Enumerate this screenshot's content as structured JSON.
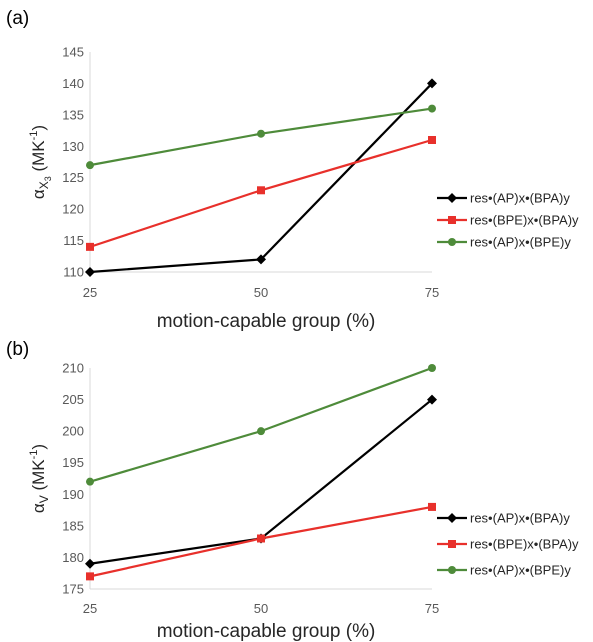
{
  "chart_data": [
    {
      "type": "line",
      "panel_label": "(a)",
      "categories": [
        "25",
        "50",
        "75"
      ],
      "x": [
        25,
        50,
        75
      ],
      "xlabel": "motion-capable group (%)",
      "ylabel_main": "α",
      "ylabel_sub": "X",
      "ylabel_subsub": "3",
      "ylabel_rest": " (MK",
      "ylabel_sup": "-1",
      "ylabel_close": ")",
      "ylim": [
        110,
        145
      ],
      "yticks": [
        "110",
        "115",
        "120",
        "125",
        "130",
        "135",
        "140",
        "145"
      ],
      "legend_position": "right",
      "series": [
        {
          "name": "res•(AP)x•(BPA)y",
          "color": "#000000",
          "marker": "diamond",
          "values": [
            110,
            112,
            140
          ]
        },
        {
          "name": "res•(BPE)x•(BPA)y",
          "color": "#e8302b",
          "marker": "square",
          "values": [
            114,
            123,
            131
          ]
        },
        {
          "name": "res•(AP)x•(BPE)y",
          "color": "#4e8b3a",
          "marker": "circle",
          "values": [
            127,
            132,
            136
          ]
        }
      ]
    },
    {
      "type": "line",
      "panel_label": "(b)",
      "categories": [
        "25",
        "50",
        "75"
      ],
      "x": [
        25,
        50,
        75
      ],
      "xlabel": "motion-capable group (%)",
      "ylabel_main": "α",
      "ylabel_sub": "V",
      "ylabel_subsub": "",
      "ylabel_rest": " (MK",
      "ylabel_sup": "-1",
      "ylabel_close": ")",
      "ylim": [
        175,
        210
      ],
      "yticks": [
        "175",
        "180",
        "185",
        "190",
        "195",
        "200",
        "205",
        "210"
      ],
      "legend_position": "right",
      "series": [
        {
          "name": "res•(AP)x•(BPA)y",
          "color": "#000000",
          "marker": "diamond",
          "values": [
            179,
            183,
            205
          ]
        },
        {
          "name": "res•(BPE)x•(BPA)y",
          "color": "#e8302b",
          "marker": "square",
          "values": [
            177,
            183,
            188
          ]
        },
        {
          "name": "res•(AP)x•(BPE)y",
          "color": "#4e8b3a",
          "marker": "circle",
          "values": [
            192,
            200,
            210
          ]
        }
      ]
    }
  ]
}
